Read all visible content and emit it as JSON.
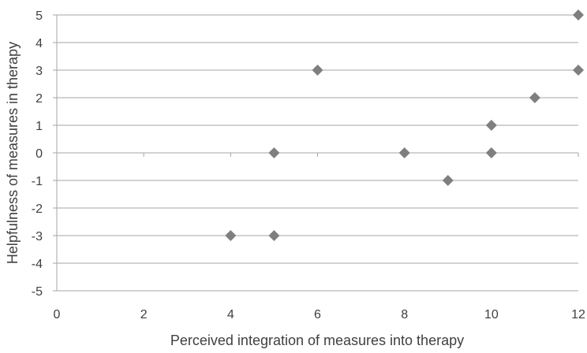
{
  "chart_data": {
    "type": "scatter",
    "title": "",
    "xlabel": "Perceived integration of measures into therapy",
    "ylabel": "Helpfulness of measures in therapy",
    "xlim": [
      0,
      12
    ],
    "ylim": [
      -5,
      5
    ],
    "x_ticks": [
      0,
      2,
      4,
      6,
      8,
      10,
      12
    ],
    "y_ticks": [
      5,
      4,
      3,
      2,
      1,
      0,
      -1,
      -2,
      -3,
      -4,
      -5
    ],
    "x_tick_labels": [
      "0",
      "2",
      "4",
      "6",
      "8",
      "10",
      "12"
    ],
    "y_tick_labels": [
      "5",
      "4",
      "3",
      "2",
      "1",
      "0",
      "-1",
      "-2",
      "-3",
      "-4",
      "-5"
    ],
    "grid": "horizontal",
    "legend": "none",
    "marker": "diamond",
    "colors": {
      "marker": "#7f7f7f",
      "grid": "#a6a6a6",
      "axis": "#a6a6a6",
      "text": "#404040"
    },
    "series": [
      {
        "points": [
          {
            "x": 4,
            "y": -3
          },
          {
            "x": 5,
            "y": -3
          },
          {
            "x": 5,
            "y": 0
          },
          {
            "x": 6,
            "y": 3
          },
          {
            "x": 8,
            "y": 0
          },
          {
            "x": 9,
            "y": -1
          },
          {
            "x": 10,
            "y": 0
          },
          {
            "x": 10,
            "y": 1
          },
          {
            "x": 11,
            "y": 2
          },
          {
            "x": 12,
            "y": 3
          },
          {
            "x": 12,
            "y": 5
          }
        ]
      }
    ]
  }
}
